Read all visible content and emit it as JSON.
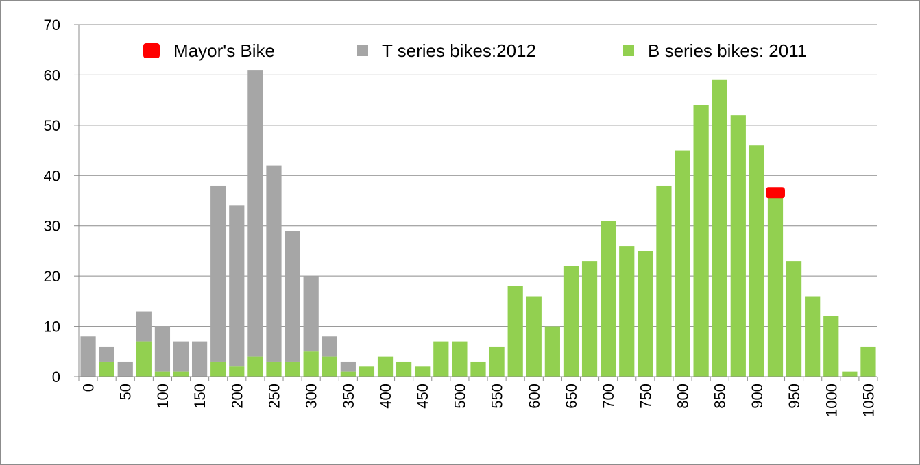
{
  "chart_data": {
    "type": "bar",
    "x_categories": [
      "0",
      "25",
      "50",
      "75",
      "100",
      "125",
      "150",
      "175",
      "200",
      "225",
      "250",
      "275",
      "300",
      "325",
      "350",
      "375",
      "400",
      "425",
      "450",
      "475",
      "500",
      "525",
      "550",
      "575",
      "600",
      "625",
      "650",
      "675",
      "700",
      "725",
      "750",
      "775",
      "800",
      "825",
      "850",
      "875",
      "900",
      "925",
      "950",
      "975",
      "1000",
      "1025",
      "1050"
    ],
    "x_tick_labels": [
      "0",
      "",
      "50",
      "",
      "100",
      "",
      "150",
      "",
      "200",
      "",
      "250",
      "",
      "300",
      "",
      "350",
      "",
      "400",
      "",
      "450",
      "",
      "500",
      "",
      "550",
      "",
      "600",
      "",
      "650",
      "",
      "700",
      "",
      "750",
      "",
      "800",
      "",
      "850",
      "",
      "900",
      "",
      "950",
      "",
      "1000",
      "",
      "1050"
    ],
    "series": [
      {
        "name": "T series bikes:2012",
        "color": "#a6a6a6",
        "values": [
          8,
          6,
          3,
          13,
          10,
          7,
          7,
          38,
          34,
          61,
          42,
          29,
          20,
          8,
          3,
          0,
          0,
          0,
          0,
          0,
          0,
          0,
          0,
          0,
          0,
          0,
          0,
          0,
          0,
          0,
          0,
          0,
          0,
          0,
          0,
          0,
          0,
          0,
          0,
          0,
          0,
          0,
          0
        ]
      },
      {
        "name": "B series bikes: 2011",
        "color": "#92d050",
        "values": [
          0,
          3,
          0,
          7,
          1,
          1,
          0,
          3,
          2,
          4,
          3,
          3,
          5,
          4,
          1,
          2,
          4,
          3,
          2,
          7,
          7,
          3,
          6,
          18,
          16,
          10,
          22,
          23,
          31,
          26,
          25,
          38,
          45,
          54,
          59,
          52,
          46,
          36,
          23,
          16,
          12,
          1,
          6
        ]
      }
    ],
    "marker": {
      "name": "Mayor's Bike",
      "color": "#ff0000",
      "category_index": 37,
      "value": 36.6
    },
    "y_ticks": [
      "0",
      "10",
      "20",
      "30",
      "40",
      "50",
      "60",
      "70"
    ],
    "ylim": [
      0,
      70
    ],
    "grid": true,
    "legend_position": "top",
    "title": "",
    "xlabel": "",
    "ylabel": ""
  }
}
